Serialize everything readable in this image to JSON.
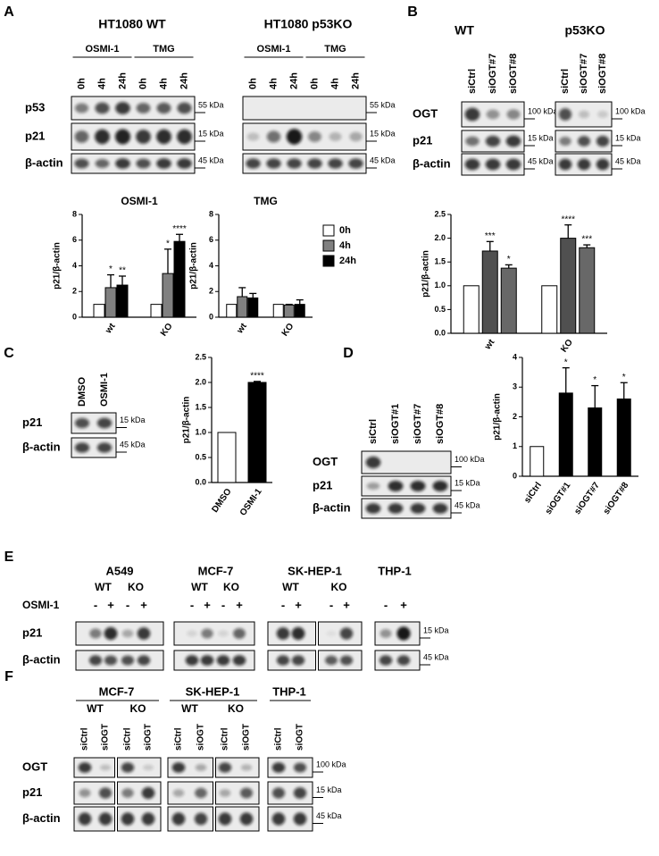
{
  "panel_labels": [
    "A",
    "B",
    "C",
    "D",
    "E",
    "F"
  ],
  "blots": [
    {
      "header": "HT1080 WT",
      "subgroups": [
        "OSMI-1",
        "TMG"
      ],
      "lanes": [
        "0h",
        "4h",
        "24h",
        "0h",
        "4h",
        "24h"
      ],
      "rows": [
        "p53",
        "p21",
        "β-actin"
      ],
      "markers": [
        "55 kDa",
        "15 kDa",
        "45 kDa"
      ]
    },
    {
      "header": "HT1080 p53KO",
      "subgroups": [
        "OSMI-1",
        "TMG"
      ],
      "lanes": [
        "0h",
        "4h",
        "24h",
        "0h",
        "4h",
        "24h"
      ],
      "markers": [
        "55 kDa",
        "15 kDa",
        "45 kDa"
      ]
    },
    {
      "header": "WT",
      "lanes": [
        "siCtrl",
        "siOGT#7",
        "siOGT#8"
      ],
      "rows": [
        "OGT",
        "p21",
        "β-actin"
      ],
      "markers": [
        "100 kDa",
        "15 kDa",
        "45 kDa"
      ]
    },
    {
      "header": "p53KO",
      "lanes": [
        "siCtrl",
        "siOGT#7",
        "siOGT#8"
      ],
      "markers": [
        "100 kDa",
        "15 kDa",
        "45 kDa"
      ]
    },
    {
      "lanes": [
        "DMSO",
        "OSMI-1"
      ],
      "rows": [
        "p21",
        "β-actin"
      ],
      "markers": [
        "15 kDa",
        "45 kDa"
      ]
    },
    {
      "lanes": [
        "siCtrl",
        "siOGT#1",
        "siOGT#7",
        "siOGT#8"
      ],
      "rows": [
        "OGT",
        "p21",
        "β-actin"
      ],
      "markers": [
        "100 kDa",
        "15 kDa",
        "45 kDa"
      ]
    }
  ],
  "panel_e": {
    "treatment": "OSMI-1",
    "cell_lines": [
      {
        "name": "A549",
        "genotypes": [
          "WT",
          "KO"
        ],
        "lanes": [
          "-",
          "+",
          "-",
          "+"
        ]
      },
      {
        "name": "MCF-7",
        "genotypes": [
          "WT",
          "KO"
        ],
        "lanes": [
          "-",
          "+",
          "-",
          "+"
        ]
      },
      {
        "name": "SK-HEP-1",
        "genotypes": [
          "WT",
          "KO"
        ],
        "lanes": [
          "-",
          "+",
          "-",
          "+"
        ]
      },
      {
        "name": "THP-1",
        "lanes": [
          "-",
          "+"
        ]
      }
    ],
    "rows": [
      "p21",
      "β-actin"
    ],
    "markers": [
      "15 kDa",
      "45 kDa"
    ]
  },
  "panel_f": {
    "cell_lines": [
      {
        "name": "MCF-7",
        "genotypes": [
          "WT",
          "KO"
        ],
        "lanes": [
          "siCtrl",
          "siOGT",
          "siCtrl",
          "siOGT"
        ]
      },
      {
        "name": "SK-HEP-1",
        "genotypes": [
          "WT",
          "KO"
        ],
        "lanes": [
          "siCtrl",
          "siOGT",
          "siCtrl",
          "siOGT"
        ]
      },
      {
        "name": "THP-1",
        "lanes": [
          "siCtrl",
          "siOGT"
        ]
      }
    ],
    "rows": [
      "OGT",
      "p21",
      "β-actin"
    ],
    "markers": [
      "100 kDa",
      "15 kDa",
      "45 kDa"
    ]
  },
  "chart_data": [
    {
      "type": "bar",
      "title": "OSMI-1",
      "ylabel": "p21/β-actin",
      "categories": [
        "wt",
        "KO"
      ],
      "series": [
        {
          "color": "#ffffff",
          "values": [
            1,
            1
          ]
        },
        {
          "color": "#808080",
          "values": [
            2.3,
            3.4
          ],
          "errors": [
            1.0,
            1.9
          ],
          "annotations": [
            "*",
            "*"
          ]
        },
        {
          "color": "#000000",
          "values": [
            2.5,
            5.9
          ],
          "errors": [
            0.7,
            0.55
          ],
          "annotations": [
            "**",
            "****"
          ]
        }
      ],
      "ylim": [
        0,
        8
      ],
      "yticks": [
        0,
        2,
        4,
        6,
        8
      ]
    },
    {
      "type": "bar",
      "title": "TMG",
      "ylabel": "p21/β-actin",
      "categories": [
        "wt",
        "KO"
      ],
      "series": [
        {
          "name": "0h",
          "color": "#ffffff",
          "values": [
            1,
            1
          ]
        },
        {
          "name": "4h",
          "color": "#808080",
          "values": [
            1.6,
            0.95
          ],
          "errors": [
            0.7,
            0.05
          ]
        },
        {
          "name": "24h",
          "color": "#000000",
          "values": [
            1.5,
            1.0
          ],
          "errors": [
            0.35,
            0.35
          ]
        }
      ],
      "ylim": [
        0,
        8
      ],
      "yticks": [
        0,
        2,
        4,
        6,
        8
      ],
      "legend": "right"
    },
    {
      "type": "bar",
      "ylabel": "p21/β-actin",
      "categories": [
        "wt",
        "KO"
      ],
      "series": [
        {
          "color": "#ffffff",
          "values": [
            1.0,
            1.0
          ]
        },
        {
          "color": "#505050",
          "values": [
            1.73,
            2.0
          ],
          "errors": [
            0.2,
            0.28
          ],
          "annotations": [
            "***",
            "****"
          ]
        },
        {
          "color": "#686868",
          "values": [
            1.37,
            1.8
          ],
          "errors": [
            0.07,
            0.06
          ],
          "annotations": [
            "*",
            "***"
          ]
        }
      ],
      "ylim": [
        0,
        2.5
      ],
      "yticks": [
        {
          "value": 0,
          "label": "0.0"
        },
        {
          "value": 0.5,
          "label": "0.5"
        },
        {
          "value": 1,
          "label": "1.0"
        },
        {
          "value": 1.5,
          "label": "1.5"
        },
        {
          "value": 2,
          "label": "2.0"
        },
        {
          "value": 2.5,
          "label": "2.5"
        }
      ]
    },
    {
      "type": "bar",
      "ylabel": "p21/β-actin",
      "categories": [
        "DMSO",
        "OSMI-1"
      ],
      "series": [
        {
          "colors": [
            "#ffffff",
            "#000000"
          ],
          "values": [
            1.0,
            2.0
          ],
          "errors": [
            null,
            0.02
          ],
          "annotations": [
            null,
            "****"
          ]
        }
      ],
      "ylim": [
        0,
        2.5
      ],
      "yticks": [
        {
          "value": 0,
          "label": "0.0"
        },
        {
          "value": 0.5,
          "label": "0.5"
        },
        {
          "value": 1,
          "label": "1.0"
        },
        {
          "value": 1.5,
          "label": "1.5"
        },
        {
          "value": 2,
          "label": "2.0"
        },
        {
          "value": 2.5,
          "label": "2.5"
        }
      ]
    },
    {
      "type": "bar",
      "ylabel": "p21/β-actin",
      "categories": [
        "siCtrl",
        "siOGT#1",
        "siOGT#7",
        "siOGT#8"
      ],
      "series": [
        {
          "colors": [
            "#ffffff",
            "#000000",
            "#000000",
            "#000000"
          ],
          "values": [
            1,
            2.8,
            2.3,
            2.6
          ],
          "errors": [
            null,
            0.85,
            0.75,
            0.55
          ],
          "annotations": [
            null,
            "*",
            "*",
            "*"
          ]
        }
      ],
      "ylim": [
        0,
        4
      ],
      "yticks": [
        0,
        1,
        2,
        3,
        4
      ]
    }
  ]
}
